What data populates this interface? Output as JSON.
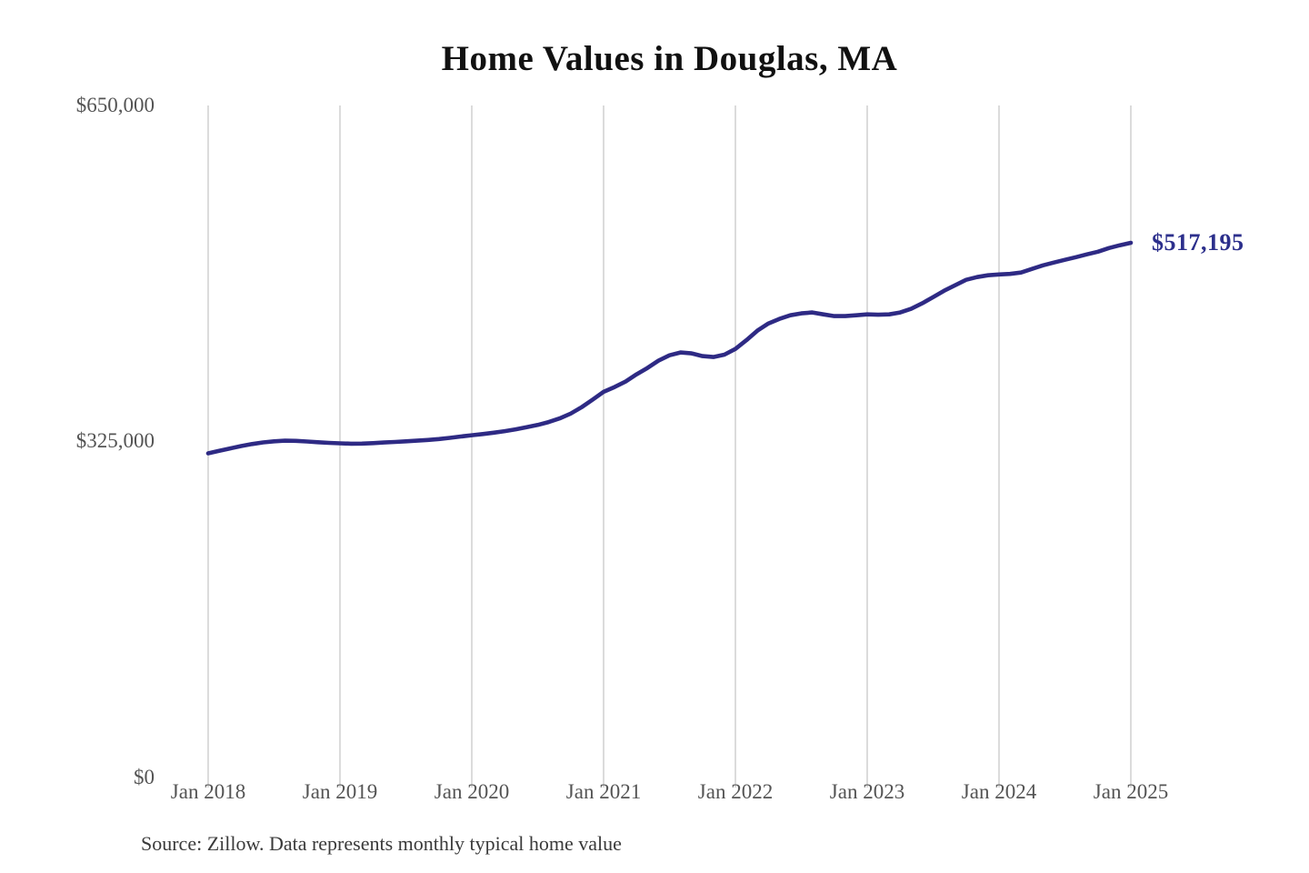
{
  "chart": {
    "title": "Home Values in Douglas, MA",
    "end_label": "$517,195",
    "source": "Source: Zillow. Data represents monthly typical home value",
    "y_ticks": [
      "$650,000",
      "$325,000",
      "$0"
    ],
    "x_ticks": [
      "Jan 2018",
      "Jan 2019",
      "Jan 2020",
      "Jan 2021",
      "Jan 2022",
      "Jan 2023",
      "Jan 2024",
      "Jan 2025"
    ],
    "colors": {
      "line": "#2e2a84",
      "end_label": "#2c2f8c",
      "grid": "#c8c8c8",
      "axis_text": "#545454",
      "title_text": "#111111",
      "source_text": "#3a3a3a"
    }
  },
  "chart_data": {
    "type": "line",
    "title": "Home Values in Douglas, MA",
    "series_name": "Typical home value",
    "interval": "monthly",
    "x_start": "2018-01",
    "x_end": "2025-01",
    "x_tick_labels": [
      "Jan 2018",
      "Jan 2019",
      "Jan 2020",
      "Jan 2021",
      "Jan 2022",
      "Jan 2023",
      "Jan 2024",
      "Jan 2025"
    ],
    "y_tick_values": [
      650000,
      325000,
      0
    ],
    "y_tick_labels": [
      "$650,000",
      "$325,000",
      "$0"
    ],
    "ylim": [
      0,
      650000
    ],
    "grid": "vertical-only",
    "legend": "none",
    "annotation": {
      "text": "$517,195",
      "value": 517195,
      "x": "2025-01"
    },
    "source": "Source: Zillow. Data represents monthly typical home value",
    "values": [
      313600,
      315900,
      318300,
      320600,
      322500,
      324100,
      325200,
      325800,
      325600,
      325000,
      324300,
      323700,
      323200,
      322900,
      323000,
      323400,
      324000,
      324600,
      325200,
      325800,
      326500,
      327400,
      328500,
      329800,
      331100,
      332200,
      333500,
      335000,
      336800,
      338800,
      341000,
      343800,
      347300,
      352000,
      358200,
      365500,
      373000,
      377700,
      383000,
      390000,
      396200,
      403200,
      408400,
      411100,
      410200,
      407600,
      406700,
      409000,
      414500,
      423000,
      432200,
      439200,
      443600,
      447100,
      448900,
      449800,
      448000,
      446300,
      446300,
      447100,
      448000,
      447600,
      448000,
      449800,
      453300,
      458600,
      464700,
      470800,
      476100,
      481400,
      484000,
      485800,
      486600,
      487100,
      488400,
      491900,
      495400,
      498100,
      500700,
      503300,
      506000,
      508600,
      512100,
      514800,
      517195
    ]
  }
}
